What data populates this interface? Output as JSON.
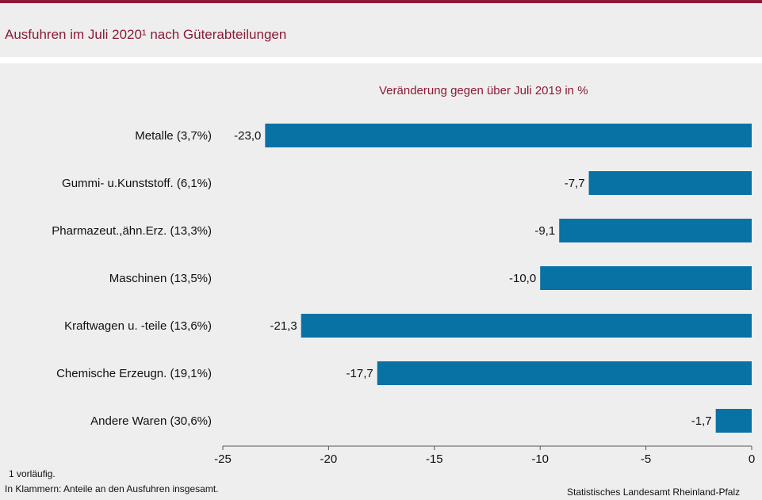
{
  "header": {
    "title": "Ausfuhren im Juli 2020¹ nach Güterabteilungen"
  },
  "chart_data": {
    "type": "bar",
    "orientation": "horizontal",
    "title": "Ausfuhren im Juli 2020¹ nach Güterabteilungen",
    "subtitle": "Veränderung  gegen über Juli 2019 in %",
    "categories": [
      "Metalle (3,7%)",
      "Gummi- u.Kunststoff. (6,1%)",
      "Pharmazeut.,ähn.Erz. (13,3%)",
      "Maschinen (13,5%)",
      "Kraftwagen u. -teile (13,6%)",
      "Chemische Erzeugn. (19,1%)",
      "Andere Waren (30,6%)"
    ],
    "values": [
      -23.0,
      -7.7,
      -9.1,
      -10.0,
      -21.3,
      -17.7,
      -1.7
    ],
    "value_labels": [
      "-23,0",
      "-7,7",
      "-9,1",
      "-10,0",
      "-21,3",
      "-17,7",
      "-1,7"
    ],
    "xlim": [
      -25,
      0
    ],
    "xticks": [
      -25,
      -20,
      -15,
      -10,
      -5,
      0
    ],
    "xtick_labels": [
      "-25",
      "-20",
      "-15",
      "-10",
      "-5",
      "0"
    ],
    "grid": false,
    "bar_color": "#0872a4"
  },
  "footer": {
    "note1": "1 vorläufig.",
    "note2": "In Klammern: Anteile an den Ausfuhren insgesamt.",
    "source": "Statistisches Landesamt Rheinland-Pfalz"
  },
  "colors": {
    "accent": "#8b1b37",
    "bar": "#0872a4",
    "background": "#eeeeee"
  }
}
